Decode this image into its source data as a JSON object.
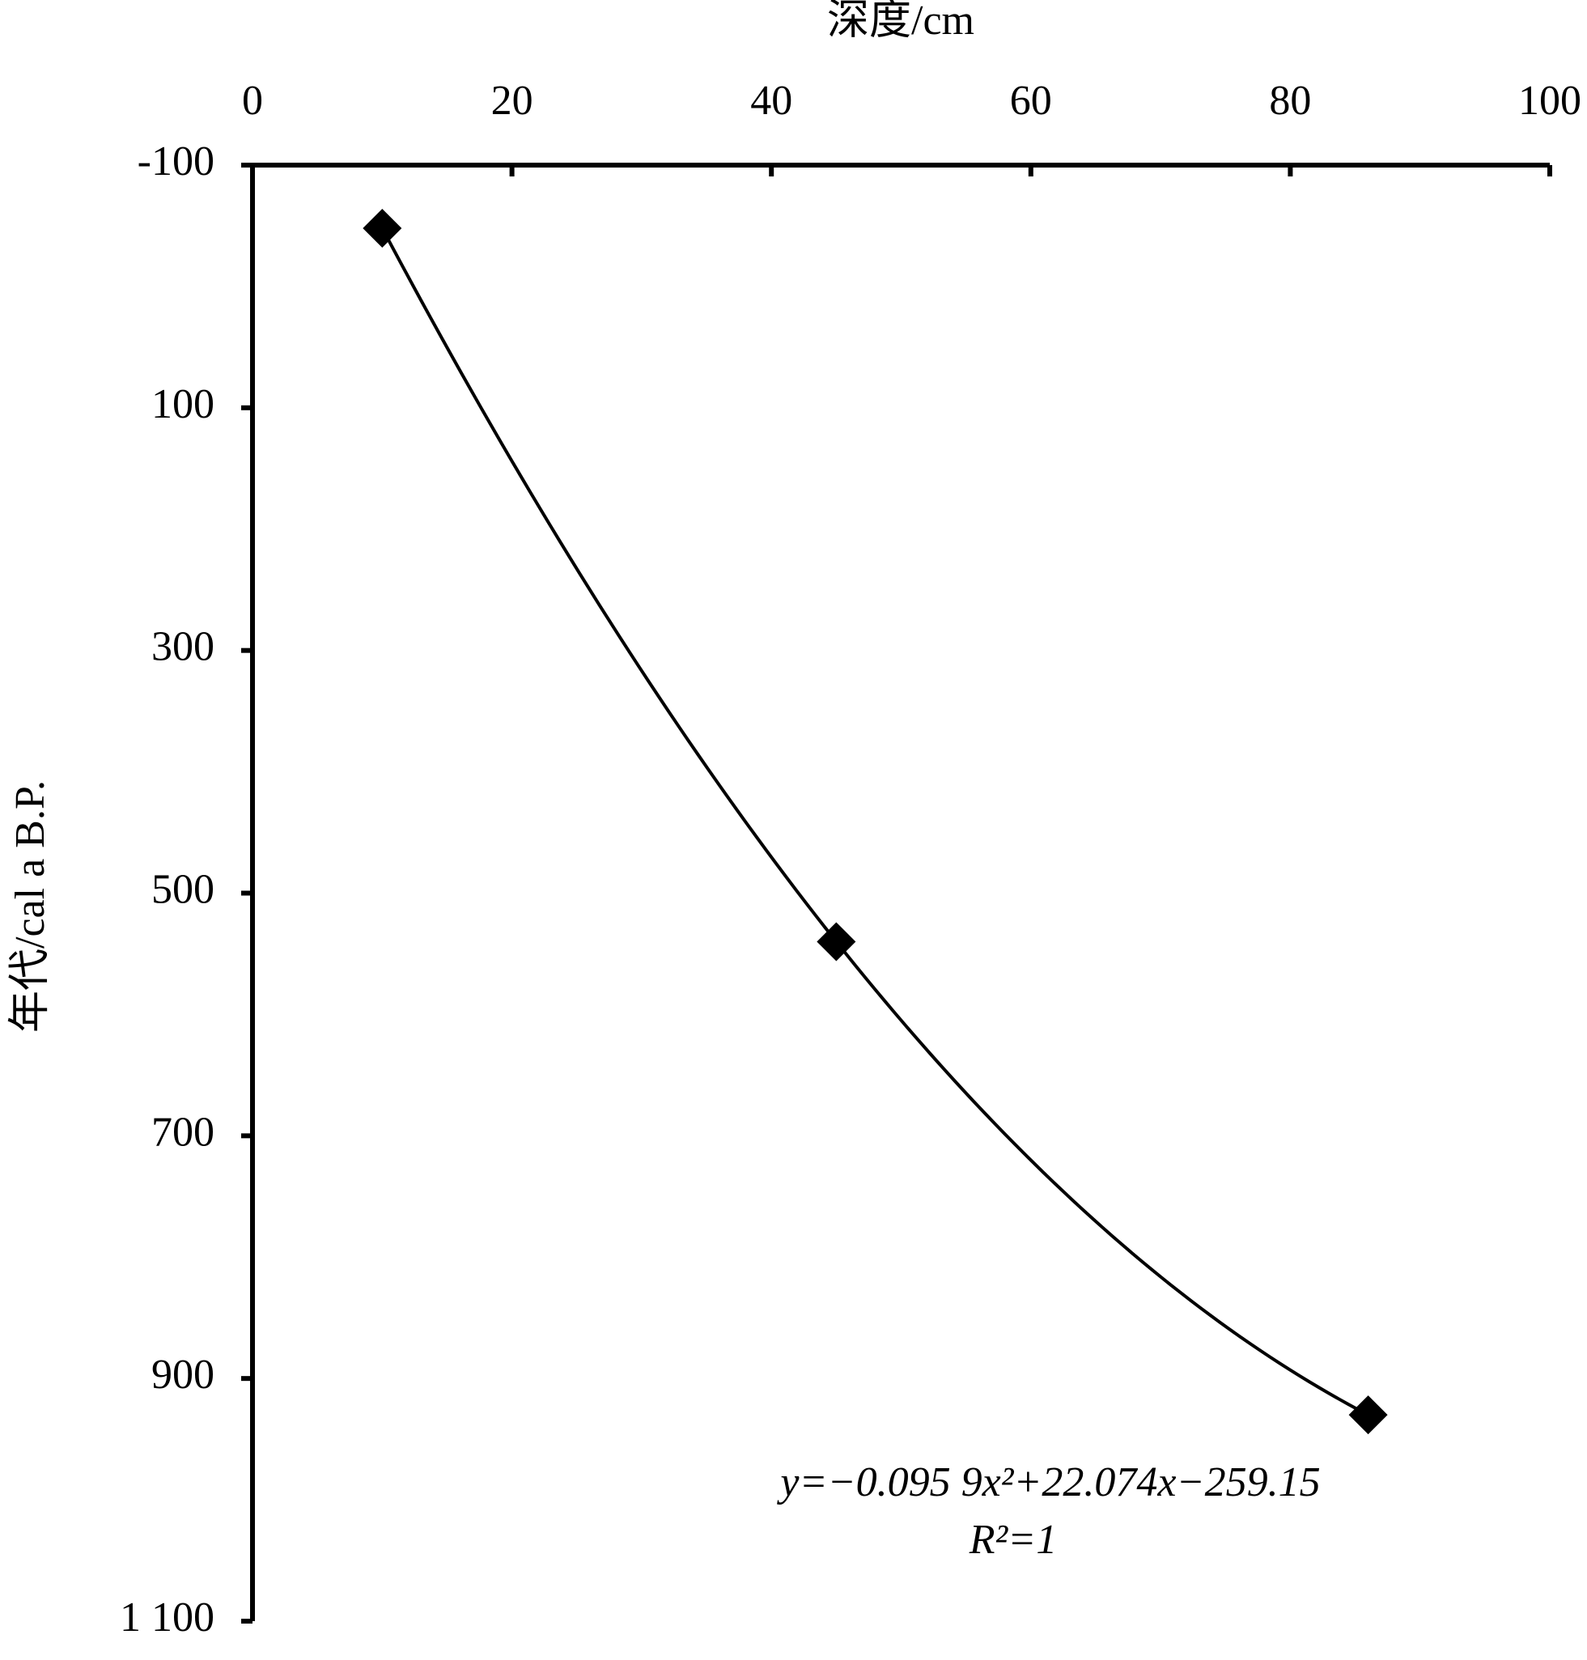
{
  "chart_data": {
    "type": "scatter",
    "x_label": "深度/cm",
    "y_label": "年代/cal a B.P.",
    "x": [
      10,
      45,
      86
    ],
    "series": [
      {
        "color": "#000000",
        "values": [
          -48,
          540,
          930
        ]
      }
    ],
    "xlim": [
      0,
      100
    ],
    "xticks": [
      0,
      20,
      40,
      60,
      80,
      100
    ],
    "ylim": [
      -100,
      1100
    ],
    "yticks": [
      -100,
      100,
      300,
      500,
      700,
      900,
      {
        "value": 1100,
        "label": "1 100"
      }
    ],
    "y_inverted": true,
    "x_axis_position": "top",
    "trendline": "quadratic",
    "annotations": [
      "y=−0.095 9x²+22.074x−259.15",
      "R²=1"
    ]
  }
}
